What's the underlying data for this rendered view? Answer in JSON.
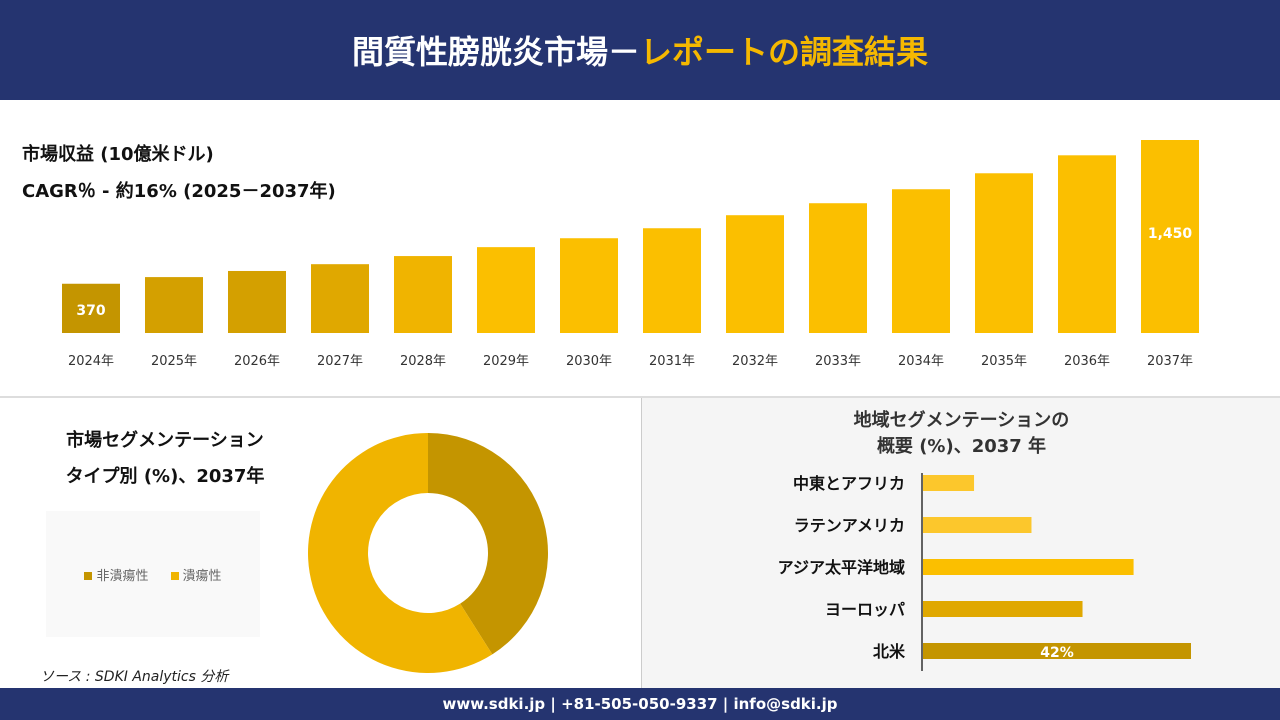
{
  "header": {
    "title_white": "間質性膀胱炎市場－",
    "title_accent": "レポートの調査結果"
  },
  "revenue": {
    "label": "市場収益 (10億米ドル)",
    "cagr": "CAGR％ - 約16% (2025－2037年)"
  },
  "chart_data": [
    {
      "type": "bar",
      "categories": [
        "2024年",
        "2025年",
        "2026年",
        "2027年",
        "2028年",
        "2029年",
        "2030年",
        "2031年",
        "2032年",
        "2033年",
        "2034年",
        "2035年",
        "2036年",
        "2037年"
      ],
      "values": [
        370,
        420,
        466,
        517,
        578,
        645,
        712,
        787,
        885,
        975,
        1080,
        1200,
        1335,
        1450
      ],
      "data_labels": {
        "0": "370",
        "13": "1,450"
      },
      "colors": [
        "#c49500",
        "#d4a000",
        "#e0a800",
        "#f0b400",
        "#fbbf00"
      ]
    },
    {
      "type": "pie",
      "title": "市場セグメンテーション タイプ別 (%)、2037年",
      "title_lines": [
        "市場セグメンテーション",
        "タイプ別 (%)、2037年"
      ],
      "categories": [
        "非潰瘍性",
        "潰瘍性"
      ],
      "values": [
        41,
        59
      ],
      "colors": [
        "#c49500",
        "#f0b400"
      ],
      "hole": true,
      "legend": "left"
    },
    {
      "type": "bar",
      "orientation": "horizontal",
      "title_lines": [
        "地域セグメンテーションの",
        "概要 (%)、2037 年"
      ],
      "categories": [
        "中東とアフリカ",
        "ラテンアメリカ",
        "アジア太平洋地域",
        "ヨーロッパ",
        "北米"
      ],
      "values": [
        8,
        17,
        33,
        25,
        42
      ],
      "data_labels": {
        "4": "42%"
      },
      "colors": [
        "#fcc72c",
        "#fcc72c",
        "#fbbf00",
        "#e0a800",
        "#c49500"
      ]
    }
  ],
  "source": "ソース : SDKI Analytics 分析",
  "footer": "www.sdki.jp | +81-505-050-9337 | info@sdki.jp"
}
